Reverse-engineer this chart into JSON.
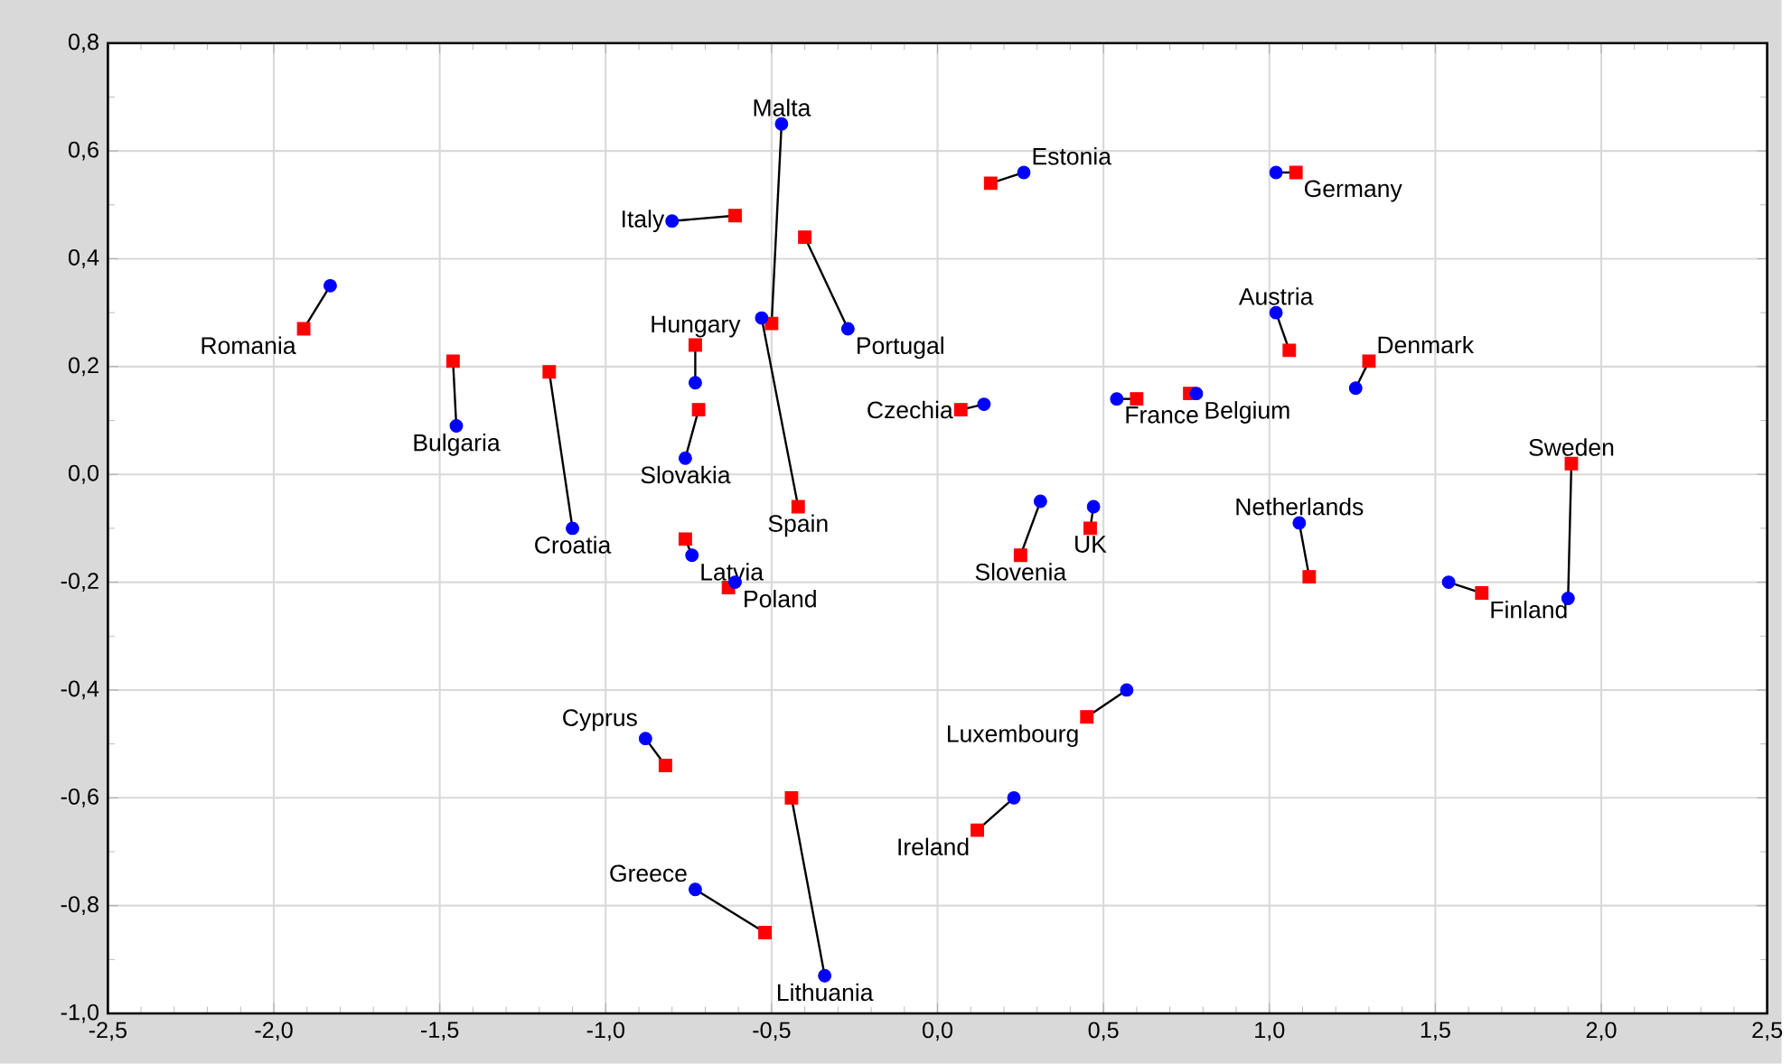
{
  "chart_data": {
    "type": "scatter",
    "xlim": [
      -2.5,
      2.5
    ],
    "ylim": [
      -1.0,
      0.8
    ],
    "xticks": [
      {
        "value": -2.5,
        "label": "-2,5"
      },
      {
        "value": -2.0,
        "label": "-2,0"
      },
      {
        "value": -1.5,
        "label": "-1,5"
      },
      {
        "value": -1.0,
        "label": "-1,0"
      },
      {
        "value": -0.5,
        "label": "-0,5"
      },
      {
        "value": 0.0,
        "label": "0,0"
      },
      {
        "value": 0.5,
        "label": "0,5"
      },
      {
        "value": 1.0,
        "label": "1,0"
      },
      {
        "value": 1.5,
        "label": "1,5"
      },
      {
        "value": 2.0,
        "label": "2,0"
      },
      {
        "value": 2.5,
        "label": "2,5"
      }
    ],
    "yticks": [
      {
        "value": -1.0,
        "label": "-1,0"
      },
      {
        "value": -0.8,
        "label": "-0,8"
      },
      {
        "value": -0.6,
        "label": "-0,6"
      },
      {
        "value": -0.4,
        "label": "-0,4"
      },
      {
        "value": -0.2,
        "label": "-0,2"
      },
      {
        "value": 0.0,
        "label": "0,0"
      },
      {
        "value": 0.2,
        "label": "0,2"
      },
      {
        "value": 0.4,
        "label": "0,4"
      },
      {
        "value": 0.6,
        "label": "0,6"
      },
      {
        "value": 0.8,
        "label": "0,8"
      }
    ],
    "grid": true,
    "series": [
      {
        "color": "#ff0000",
        "marker": "square",
        "x": [
          -1.91,
          -1.46,
          -1.17,
          -0.61,
          -0.5,
          -0.73,
          -0.72,
          -0.42,
          -0.4,
          -0.76,
          -0.63,
          -0.82,
          -0.44,
          -0.52,
          0.16,
          1.08,
          1.06,
          1.3,
          0.07,
          0.6,
          0.76,
          1.91,
          0.25,
          0.46,
          1.12,
          1.64,
          0.45,
          0.12
        ],
        "values": [
          0.27,
          0.21,
          0.19,
          0.48,
          0.28,
          0.24,
          0.12,
          -0.06,
          0.44,
          -0.12,
          -0.21,
          -0.54,
          -0.6,
          -0.85,
          0.54,
          0.56,
          0.23,
          0.21,
          0.12,
          0.14,
          0.15,
          0.02,
          -0.15,
          -0.1,
          -0.19,
          -0.22,
          -0.45,
          -0.66
        ]
      },
      {
        "color": "#0000ff",
        "marker": "circle",
        "x": [
          -1.83,
          -1.45,
          -1.1,
          -0.8,
          -0.47,
          -0.73,
          -0.76,
          -0.53,
          -0.27,
          -0.74,
          -0.61,
          -0.88,
          -0.34,
          -0.73,
          0.26,
          1.02,
          1.02,
          1.26,
          0.14,
          0.54,
          0.78,
          1.9,
          0.31,
          0.47,
          1.09,
          1.54,
          0.57,
          0.23
        ],
        "values": [
          0.35,
          0.09,
          -0.1,
          0.47,
          0.65,
          0.17,
          0.03,
          0.29,
          0.27,
          -0.15,
          -0.2,
          -0.49,
          -0.93,
          -0.77,
          0.56,
          0.56,
          0.3,
          0.16,
          0.13,
          0.14,
          0.15,
          -0.23,
          -0.05,
          -0.06,
          -0.09,
          -0.2,
          -0.4,
          -0.6
        ]
      }
    ],
    "annotations": [
      {
        "text": "Romania",
        "x": -1.91,
        "y": 0.27
      },
      {
        "text": "Bulgaria",
        "x": -1.45,
        "y": 0.09
      },
      {
        "text": "Croatia",
        "x": -1.1,
        "y": -0.1
      },
      {
        "text": "Italy",
        "x": -0.8,
        "y": 0.47
      },
      {
        "text": "Malta",
        "x": -0.47,
        "y": 0.65
      },
      {
        "text": "Hungary",
        "x": -0.73,
        "y": 0.24
      },
      {
        "text": "Slovakia",
        "x": -0.76,
        "y": 0.03
      },
      {
        "text": "Spain",
        "x": -0.42,
        "y": -0.06
      },
      {
        "text": "Portugal",
        "x": -0.27,
        "y": 0.27
      },
      {
        "text": "Latvia",
        "x": -0.74,
        "y": -0.15
      },
      {
        "text": "Poland",
        "x": -0.61,
        "y": -0.2
      },
      {
        "text": "Cyprus",
        "x": -0.88,
        "y": -0.49
      },
      {
        "text": "Lithuania",
        "x": -0.34,
        "y": -0.93
      },
      {
        "text": "Greece",
        "x": -0.73,
        "y": -0.77
      },
      {
        "text": "Estonia",
        "x": 0.26,
        "y": 0.56
      },
      {
        "text": "Germany",
        "x": 1.08,
        "y": 0.56
      },
      {
        "text": "Austria",
        "x": 1.02,
        "y": 0.3
      },
      {
        "text": "Denmark",
        "x": 1.3,
        "y": 0.21
      },
      {
        "text": "Czechia",
        "x": 0.07,
        "y": 0.12
      },
      {
        "text": "France",
        "x": 0.54,
        "y": 0.14
      },
      {
        "text": "Belgium",
        "x": 0.78,
        "y": 0.15
      },
      {
        "text": "Sweden",
        "x": 1.91,
        "y": 0.02
      },
      {
        "text": "Slovenia",
        "x": 0.25,
        "y": -0.15
      },
      {
        "text": "UK",
        "x": 0.46,
        "y": -0.1
      },
      {
        "text": "Netherlands",
        "x": 1.09,
        "y": -0.09
      },
      {
        "text": "Finland",
        "x": 1.64,
        "y": -0.22
      },
      {
        "text": "Luxembourg",
        "x": 0.45,
        "y": -0.45
      },
      {
        "text": "Ireland",
        "x": 0.12,
        "y": -0.66
      }
    ]
  }
}
